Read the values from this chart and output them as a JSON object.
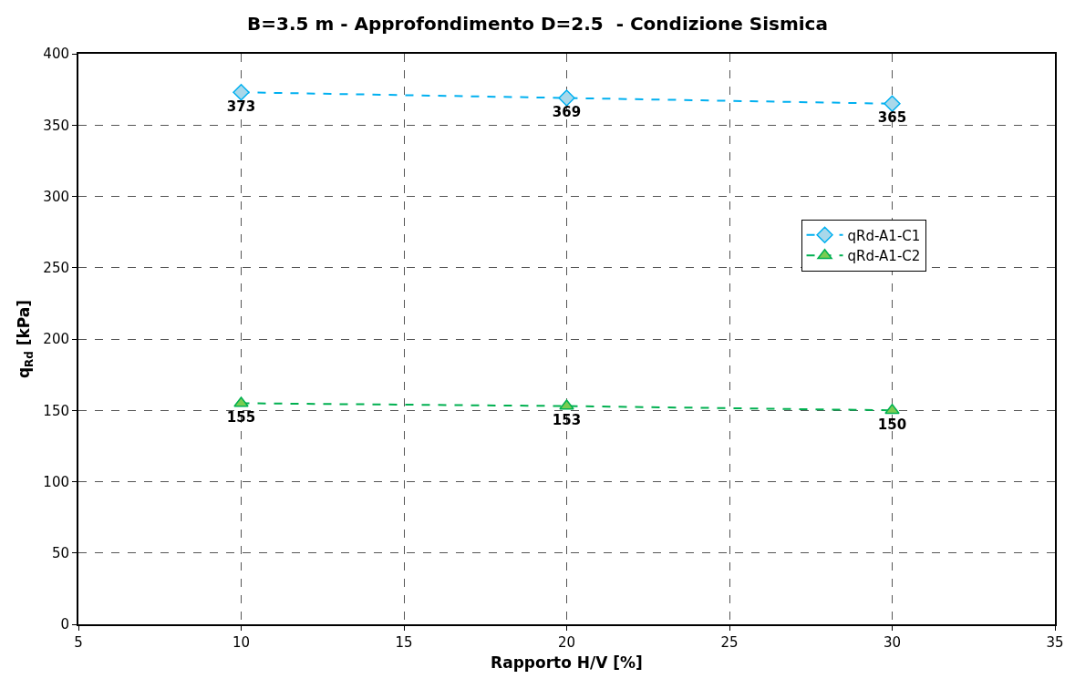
{
  "chart_data": {
    "type": "line",
    "title": "B=3.5 m - Approfondimento D=2.5  - Condizione Sismica",
    "xlabel": "Rapporto H/V [%]",
    "ylabel": "q$_{Rd}$ [kPa]",
    "x": [
      10,
      20,
      30
    ],
    "series": [
      {
        "name": "qRd-A1-C1",
        "color": "#00b0f0",
        "marker": "diamond",
        "values": [
          373,
          369,
          365
        ]
      },
      {
        "name": "qRd-A1-C2",
        "color": "#00b050",
        "marker": "triangle",
        "values": [
          155,
          153,
          150
        ]
      }
    ],
    "xlim": [
      5,
      35
    ],
    "xticks": [
      5,
      10,
      15,
      20,
      25,
      30,
      35
    ],
    "ylim": [
      0,
      400
    ],
    "yticks": [
      0,
      50,
      100,
      150,
      200,
      250,
      300,
      350,
      400
    ],
    "grid": true,
    "legend": "right",
    "line_style": "dashed",
    "data_labels": true
  }
}
